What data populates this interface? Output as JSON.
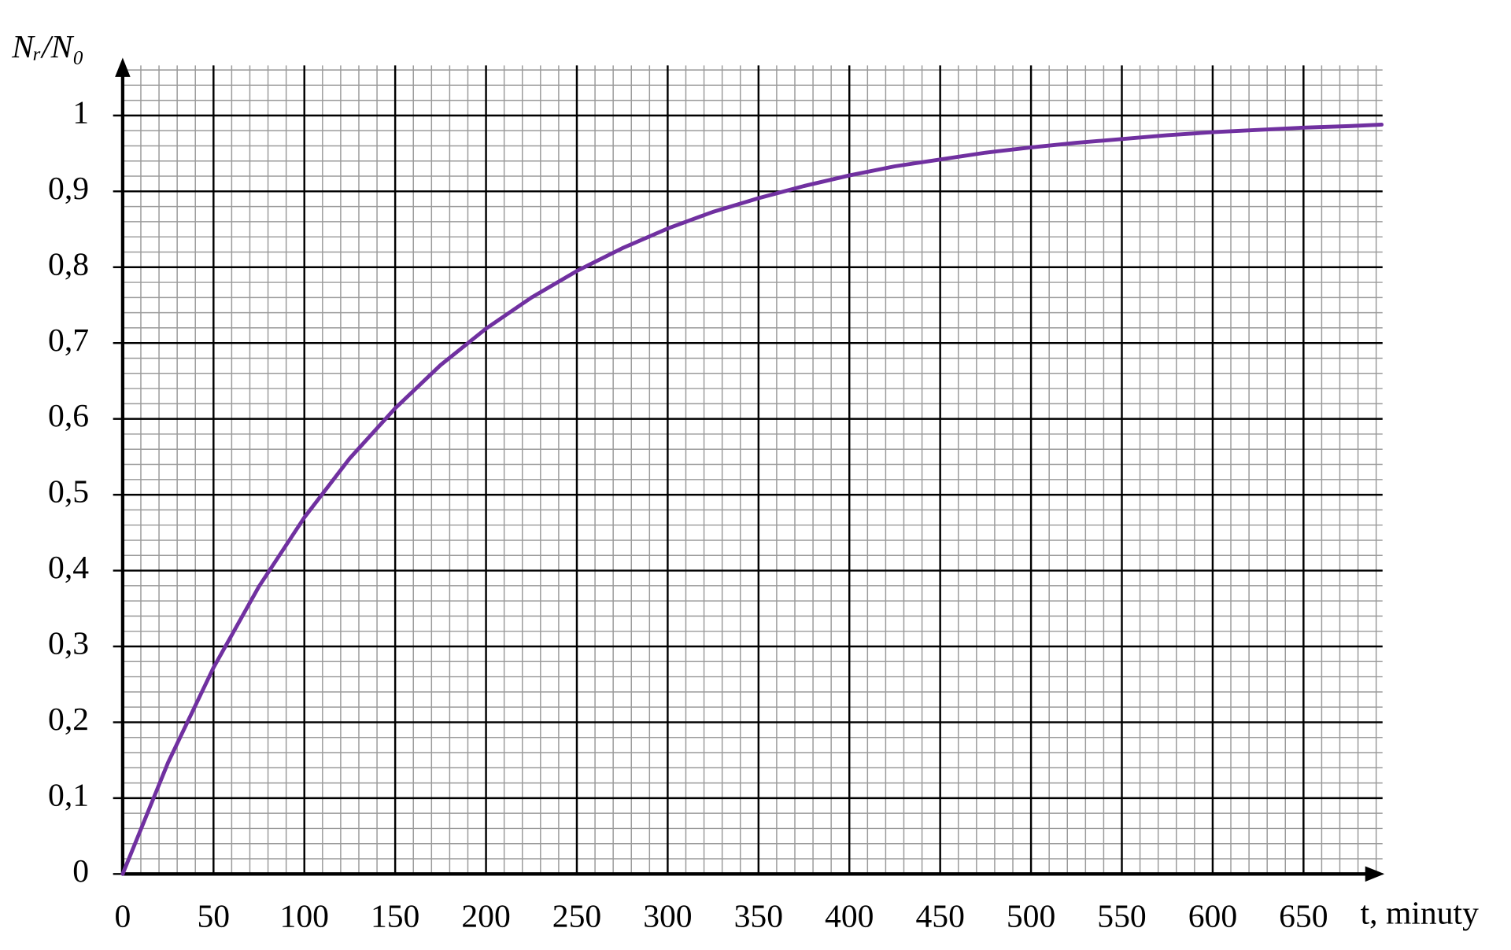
{
  "chart_data": {
    "type": "line",
    "y_label": "Nᵣ/N₀",
    "x_label": "t, minuty",
    "x": [
      0,
      25,
      50,
      75,
      100,
      125,
      150,
      175,
      200,
      225,
      250,
      275,
      300,
      325,
      350,
      375,
      400,
      425,
      450,
      475,
      500,
      525,
      550,
      575,
      600,
      625,
      650,
      675,
      693
    ],
    "series": [
      {
        "color": "#7030a0",
        "values": [
          0,
          0.147,
          0.272,
          0.379,
          0.47,
          0.548,
          0.614,
          0.671,
          0.719,
          0.76,
          0.795,
          0.825,
          0.851,
          0.873,
          0.891,
          0.907,
          0.921,
          0.933,
          0.942,
          0.951,
          0.958,
          0.964,
          0.969,
          0.974,
          0.978,
          0.981,
          0.984,
          0.986,
          0.988
        ]
      }
    ],
    "xlim": [
      0,
      693.5
    ],
    "ylim": [
      0,
      1.066
    ],
    "xticks": [
      0,
      50,
      100,
      150,
      200,
      250,
      300,
      350,
      400,
      450,
      500,
      550,
      600,
      650
    ],
    "yticks": [
      0,
      {
        "value": 0.1,
        "label": "0,1"
      },
      {
        "value": 0.2,
        "label": "0,2"
      },
      {
        "value": 0.3,
        "label": "0,3"
      },
      {
        "value": 0.4,
        "label": "0,4"
      },
      {
        "value": 0.5,
        "label": "0,5"
      },
      {
        "value": 0.6,
        "label": "0,6"
      },
      {
        "value": 0.7,
        "label": "0,7"
      },
      {
        "value": 0.8,
        "label": "0,8"
      },
      {
        "value": 0.9,
        "label": "0,9"
      },
      1
    ],
    "grid": true
  }
}
